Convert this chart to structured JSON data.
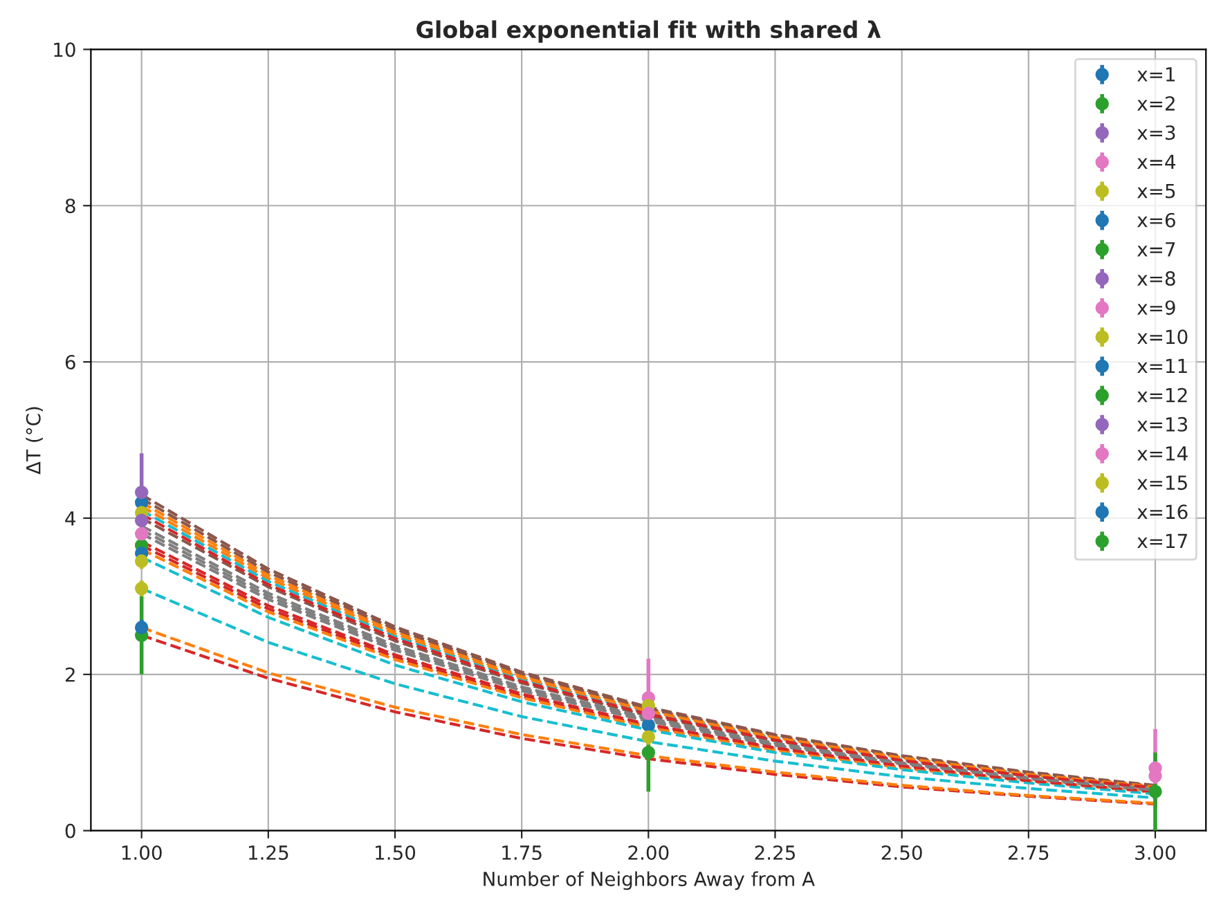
{
  "chart_data": {
    "type": "scatter",
    "title": "Global exponential fit with shared λ",
    "xlabel": "Number of Neighbors Away from A",
    "ylabel": "ΔT (°C)",
    "xlim": [
      0.9,
      3.1
    ],
    "xticks": [
      {
        "value": 1,
        "label": "1.00"
      },
      {
        "value": 1.25,
        "label": "1.25"
      },
      {
        "value": 1.5,
        "label": "1.50"
      },
      {
        "value": 1.75,
        "label": "1.75"
      },
      {
        "value": 2,
        "label": "2.00"
      },
      {
        "value": 2.25,
        "label": "2.25"
      },
      {
        "value": 2.5,
        "label": "2.50"
      },
      {
        "value": 2.75,
        "label": "2.75"
      },
      {
        "value": 3,
        "label": "3.00"
      }
    ],
    "ylim": [
      0,
      10
    ],
    "yticks": [
      0,
      2,
      4,
      6,
      8,
      10
    ],
    "grid": true,
    "legend": "top right",
    "x": [
      1,
      2,
      3
    ],
    "series": [
      {
        "type": "line",
        "color": "#ff7f0e",
        "line_style": "dashed",
        "marker": "none",
        "x": [
          1,
          1.25,
          1.5,
          1.75,
          2,
          2.25,
          2.5,
          2.75,
          3
        ],
        "values": [
          4.2,
          3.27,
          2.55,
          1.98,
          1.55,
          1.2,
          0.94,
          0.73,
          0.57
        ]
      },
      {
        "type": "line",
        "color": "#d62728",
        "line_style": "dashed",
        "marker": "none",
        "x": [
          1,
          1.25,
          1.5,
          1.75,
          2,
          2.25,
          2.5,
          2.75,
          3
        ],
        "values": [
          3.65,
          2.84,
          2.22,
          1.72,
          1.34,
          1.05,
          0.81,
          0.64,
          0.49
        ]
      },
      {
        "type": "line",
        "color": "#8c564b",
        "line_style": "dashed",
        "marker": "none",
        "x": [
          1,
          1.25,
          1.5,
          1.75,
          2,
          2.25,
          2.5,
          2.75,
          3
        ],
        "values": [
          4.3,
          3.35,
          2.61,
          2.03,
          1.58,
          1.23,
          0.96,
          0.75,
          0.58
        ]
      },
      {
        "type": "line",
        "color": "#7f7f7f",
        "line_style": "dashed",
        "marker": "none",
        "x": [
          1,
          1.25,
          1.5,
          1.75,
          2,
          2.25,
          2.5,
          2.75,
          3
        ],
        "values": [
          3.8,
          2.96,
          2.31,
          1.79,
          1.4,
          1.09,
          0.85,
          0.66,
          0.51
        ]
      },
      {
        "type": "line",
        "color": "#17becf",
        "line_style": "dashed",
        "marker": "none",
        "x": [
          1,
          1.25,
          1.5,
          1.75,
          2,
          2.25,
          2.5,
          2.75,
          3
        ],
        "values": [
          4.1,
          3.19,
          2.49,
          1.94,
          1.51,
          1.18,
          0.91,
          0.71,
          0.55
        ]
      },
      {
        "type": "line",
        "color": "#ff7f0e",
        "line_style": "dashed",
        "marker": "none",
        "x": [
          1,
          1.25,
          1.5,
          1.75,
          2,
          2.25,
          2.5,
          2.75,
          3
        ],
        "values": [
          3.6,
          2.8,
          2.19,
          1.7,
          1.32,
          1.03,
          0.8,
          0.63,
          0.49
        ]
      },
      {
        "type": "line",
        "color": "#d62728",
        "line_style": "dashed",
        "marker": "none",
        "x": [
          1,
          1.25,
          1.5,
          1.75,
          2,
          2.25,
          2.5,
          2.75,
          3
        ],
        "values": [
          2.5,
          1.95,
          1.52,
          1.18,
          0.92,
          0.72,
          0.56,
          0.44,
          0.34
        ]
      },
      {
        "type": "line",
        "color": "#8c564b",
        "line_style": "dashed",
        "marker": "none",
        "x": [
          1,
          1.25,
          1.5,
          1.75,
          2,
          2.25,
          2.5,
          2.75,
          3
        ],
        "values": [
          4.0,
          3.12,
          2.43,
          1.89,
          1.47,
          1.15,
          0.89,
          0.7,
          0.54
        ]
      },
      {
        "type": "line",
        "color": "#7f7f7f",
        "line_style": "dashed",
        "marker": "none",
        "x": [
          1,
          1.25,
          1.5,
          1.75,
          2,
          2.25,
          2.5,
          2.75,
          3
        ],
        "values": [
          3.9,
          3.04,
          2.37,
          1.84,
          1.44,
          1.12,
          0.87,
          0.68,
          0.53
        ]
      },
      {
        "type": "line",
        "color": "#17becf",
        "line_style": "dashed",
        "marker": "none",
        "x": [
          1,
          1.25,
          1.5,
          1.75,
          2,
          2.25,
          2.5,
          2.75,
          3
        ],
        "values": [
          3.5,
          2.73,
          2.12,
          1.65,
          1.29,
          1.0,
          0.78,
          0.61,
          0.47
        ]
      },
      {
        "type": "line",
        "color": "#ff7f0e",
        "line_style": "dashed",
        "marker": "none",
        "x": [
          1,
          1.25,
          1.5,
          1.75,
          2,
          2.25,
          2.5,
          2.75,
          3
        ],
        "values": [
          2.6,
          2.02,
          1.58,
          1.23,
          0.96,
          0.75,
          0.58,
          0.45,
          0.35
        ]
      },
      {
        "type": "line",
        "color": "#d62728",
        "line_style": "dashed",
        "marker": "none",
        "x": [
          1,
          1.25,
          1.5,
          1.75,
          2,
          2.25,
          2.5,
          2.75,
          3
        ],
        "values": [
          3.7,
          2.88,
          2.25,
          1.75,
          1.36,
          1.06,
          0.83,
          0.64,
          0.5
        ]
      },
      {
        "type": "line",
        "color": "#8c564b",
        "line_style": "dashed",
        "marker": "none",
        "x": [
          1,
          1.25,
          1.5,
          1.75,
          2,
          2.25,
          2.5,
          2.75,
          3
        ],
        "values": [
          4.25,
          3.31,
          2.58,
          2.01,
          1.56,
          1.22,
          0.95,
          0.74,
          0.57
        ]
      },
      {
        "type": "line",
        "color": "#7f7f7f",
        "line_style": "dashed",
        "marker": "none",
        "x": [
          1,
          1.25,
          1.5,
          1.75,
          2,
          2.25,
          2.5,
          2.75,
          3
        ],
        "values": [
          3.85,
          3.0,
          2.34,
          1.82,
          1.42,
          1.1,
          0.86,
          0.67,
          0.52
        ]
      },
      {
        "type": "line",
        "color": "#17becf",
        "line_style": "dashed",
        "marker": "none",
        "x": [
          1,
          1.25,
          1.5,
          1.75,
          2,
          2.25,
          2.5,
          2.75,
          3
        ],
        "values": [
          3.1,
          2.41,
          1.88,
          1.46,
          1.14,
          0.89,
          0.69,
          0.54,
          0.42
        ]
      },
      {
        "type": "line",
        "color": "#ff7f0e",
        "line_style": "dashed",
        "marker": "none",
        "x": [
          1,
          1.25,
          1.5,
          1.75,
          2,
          2.25,
          2.5,
          2.75,
          3
        ],
        "values": [
          4.15,
          3.23,
          2.52,
          1.96,
          1.53,
          1.19,
          0.93,
          0.72,
          0.56
        ]
      },
      {
        "type": "line",
        "color": "#d62728",
        "line_style": "dashed",
        "marker": "none",
        "x": [
          1,
          1.25,
          1.5,
          1.75,
          2,
          2.25,
          2.5,
          2.75,
          3
        ],
        "values": [
          4.05,
          3.15,
          2.46,
          1.91,
          1.49,
          1.16,
          0.9,
          0.7,
          0.55
        ]
      },
      {
        "name": "x=1",
        "color": "#1f77b4",
        "marker": "circle",
        "values": [
          4.2,
          1.35,
          null
        ],
        "errors": [
          null,
          0.1,
          null
        ]
      },
      {
        "name": "x=2",
        "color": "#2ca02c",
        "marker": "circle",
        "values": [
          3.65,
          null,
          null
        ],
        "errors": [
          0.1,
          null,
          null
        ]
      },
      {
        "name": "x=3",
        "color": "#9467bd",
        "marker": "circle",
        "values": [
          4.33,
          null,
          null
        ],
        "errors": [
          0.5,
          null,
          null
        ]
      },
      {
        "name": "x=4",
        "color": "#e377c2",
        "marker": "circle",
        "values": [
          3.8,
          1.7,
          0.8
        ],
        "errors": [
          0.1,
          0.5,
          0.5
        ]
      },
      {
        "name": "x=5",
        "color": "#bcbd22",
        "marker": "circle",
        "values": [
          4.07,
          1.6,
          null
        ],
        "errors": [
          0.1,
          0.1,
          null
        ]
      },
      {
        "name": "x=6",
        "color": "#1f77b4",
        "marker": "circle",
        "values": [
          3.55,
          null,
          null
        ],
        "errors": [
          0.1,
          null,
          null
        ]
      },
      {
        "name": "x=7",
        "color": "#2ca02c",
        "marker": "circle",
        "values": [
          2.5,
          1.0,
          0.5
        ],
        "errors": [
          0.5,
          0.5,
          0.5
        ]
      },
      {
        "name": "x=8",
        "color": "#9467bd",
        "marker": "circle",
        "values": [
          3.97,
          null,
          null
        ],
        "errors": [
          0.1,
          null,
          null
        ]
      },
      {
        "name": "x=9",
        "color": "#e377c2",
        "marker": "circle",
        "values": [
          null,
          1.5,
          0.7
        ],
        "errors": [
          null,
          0.1,
          0.1
        ]
      },
      {
        "name": "x=10",
        "color": "#bcbd22",
        "marker": "circle",
        "values": [
          3.45,
          1.2,
          null
        ],
        "errors": [
          0.1,
          0.1,
          null
        ]
      },
      {
        "name": "x=11",
        "color": "#1f77b4",
        "marker": "circle",
        "values": [
          2.6,
          null,
          null
        ],
        "errors": [
          0.1,
          null,
          null
        ]
      },
      {
        "name": "x=12",
        "color": "#2ca02c",
        "marker": "circle",
        "values": [
          null,
          null,
          null
        ],
        "errors": [
          null,
          null,
          null
        ]
      },
      {
        "name": "x=13",
        "color": "#9467bd",
        "marker": "circle",
        "values": [
          null,
          null,
          null
        ],
        "errors": [
          null,
          null,
          null
        ]
      },
      {
        "name": "x=14",
        "color": "#e377c2",
        "marker": "circle",
        "values": [
          null,
          null,
          null
        ],
        "errors": [
          null,
          null,
          null
        ]
      },
      {
        "name": "x=15",
        "color": "#bcbd22",
        "marker": "circle",
        "values": [
          3.1,
          null,
          null
        ],
        "errors": [
          0.1,
          null,
          null
        ]
      },
      {
        "name": "x=16",
        "color": "#1f77b4",
        "marker": "circle",
        "values": [
          null,
          null,
          null
        ],
        "errors": [
          null,
          null,
          null
        ]
      },
      {
        "name": "x=17",
        "color": "#2ca02c",
        "marker": "circle",
        "values": [
          null,
          null,
          null
        ],
        "errors": [
          null,
          null,
          null
        ]
      }
    ]
  }
}
